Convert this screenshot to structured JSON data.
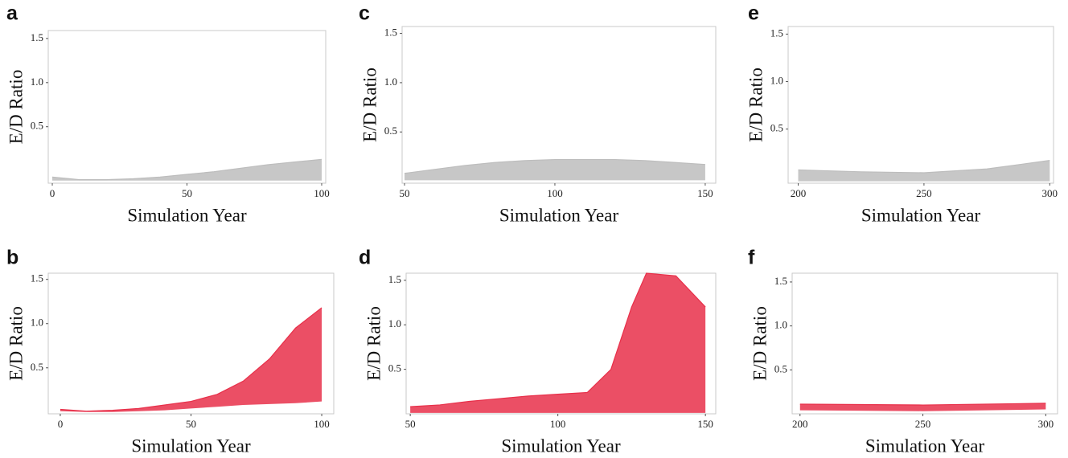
{
  "chart_data": [
    {
      "type": "band",
      "panel": "a",
      "xlabel": "Simulation Year",
      "ylabel": "E/D Ratio",
      "xlim": [
        -1.5,
        101.5
      ],
      "ylim": [
        -0.14,
        1.59
      ],
      "xticks": [
        0,
        50,
        100
      ],
      "yticks": [
        0.5,
        {
          "value": 1,
          "label": "1.0"
        },
        1.5
      ],
      "x": [
        0,
        10,
        20,
        30,
        40,
        50,
        60,
        70,
        80,
        90,
        100
      ],
      "band": {
        "color": "#bdbdbd",
        "upper": [
          -0.07,
          -0.1,
          -0.1,
          -0.09,
          -0.07,
          -0.04,
          -0.01,
          0.03,
          0.07,
          0.1,
          0.13
        ],
        "lower": [
          -0.11,
          -0.11,
          -0.11,
          -0.11,
          -0.11,
          -0.11,
          -0.11,
          -0.11,
          -0.11,
          -0.11,
          -0.11
        ]
      }
    },
    {
      "type": "band",
      "panel": "b",
      "xlabel": "Simulation Year",
      "ylabel": "E/D Ratio",
      "xlim": [
        -4.6,
        104.6
      ],
      "ylim": [
        -0.02,
        1.57
      ],
      "xticks": [
        0,
        50,
        100
      ],
      "yticks": [
        0.5,
        {
          "value": 1,
          "label": "1.0"
        },
        1.5
      ],
      "x": [
        0,
        10,
        20,
        30,
        40,
        50,
        60,
        70,
        80,
        90,
        100
      ],
      "band": {
        "color": "#e8304a",
        "upper": [
          0.03,
          0.01,
          0.02,
          0.04,
          0.08,
          0.12,
          0.2,
          0.35,
          0.6,
          0.95,
          1.18
        ],
        "lower": [
          0.01,
          0,
          0,
          0.01,
          0.02,
          0.04,
          0.06,
          0.08,
          0.09,
          0.1,
          0.12
        ]
      }
    },
    {
      "type": "band",
      "panel": "c",
      "xlabel": "Simulation Year",
      "ylabel": "E/D Ratio",
      "xlim": [
        49.2,
        153.5
      ],
      "ylim": [
        -0.02,
        1.57
      ],
      "xticks": [
        50,
        100,
        150
      ],
      "yticks": [
        0.5,
        {
          "value": 1,
          "label": "1.0"
        },
        1.5
      ],
      "x": [
        50,
        60,
        70,
        80,
        90,
        100,
        110,
        120,
        130,
        140,
        150
      ],
      "band": {
        "color": "#bdbdbd",
        "upper": [
          0.08,
          0.12,
          0.16,
          0.19,
          0.21,
          0.22,
          0.22,
          0.22,
          0.21,
          0.19,
          0.17
        ],
        "lower": [
          0.01,
          0.01,
          0.01,
          0.01,
          0.01,
          0.01,
          0.01,
          0.01,
          0.01,
          0.01,
          0.01
        ]
      }
    },
    {
      "type": "band",
      "panel": "d",
      "xlabel": "Simulation Year",
      "ylabel": "E/D Ratio",
      "xlim": [
        48.6,
        153.5
      ],
      "ylim": [
        0,
        1.58
      ],
      "xticks": [
        50,
        100,
        150
      ],
      "yticks": [
        0.5,
        {
          "value": 1,
          "label": "1.0"
        },
        1.5
      ],
      "x": [
        50,
        60,
        70,
        80,
        90,
        100,
        110,
        118,
        125,
        130,
        140,
        150
      ],
      "band": {
        "color": "#e8304a",
        "upper": [
          0.08,
          0.1,
          0.14,
          0.17,
          0.2,
          0.22,
          0.24,
          0.5,
          1.2,
          1.58,
          1.55,
          1.2
        ],
        "lower": [
          0.01,
          0.01,
          0.01,
          0.01,
          0.01,
          0.01,
          0.01,
          0.01,
          0.01,
          0.01,
          0.01,
          0.01
        ]
      }
    },
    {
      "type": "band",
      "panel": "e",
      "xlabel": "Simulation Year",
      "ylabel": "E/D Ratio",
      "xlim": [
        196,
        301.5
      ],
      "ylim": [
        -0.07,
        1.58
      ],
      "xticks": [
        200,
        250,
        300
      ],
      "yticks": [
        0.5,
        {
          "value": 1,
          "label": "1.0"
        },
        1.5
      ],
      "x": [
        200,
        225,
        250,
        275,
        300
      ],
      "band": {
        "color": "#bdbdbd",
        "upper": [
          0.07,
          0.05,
          0.04,
          0.08,
          0.17
        ],
        "lower": [
          -0.05,
          -0.05,
          -0.05,
          -0.05,
          -0.05
        ]
      }
    },
    {
      "type": "band",
      "panel": "f",
      "xlabel": "Simulation Year",
      "ylabel": "E/D Ratio",
      "xlim": [
        196.8,
        304.8
      ],
      "ylim": [
        0,
        1.6
      ],
      "xticks": [
        200,
        250,
        300
      ],
      "yticks": [
        0.5,
        {
          "value": 1,
          "label": "1.0"
        },
        1.5
      ],
      "x": [
        200,
        250,
        300
      ],
      "band": {
        "color": "#e8304a",
        "upper": [
          0.11,
          0.1,
          0.12
        ],
        "lower": [
          0.04,
          0.03,
          0.05
        ]
      }
    }
  ]
}
